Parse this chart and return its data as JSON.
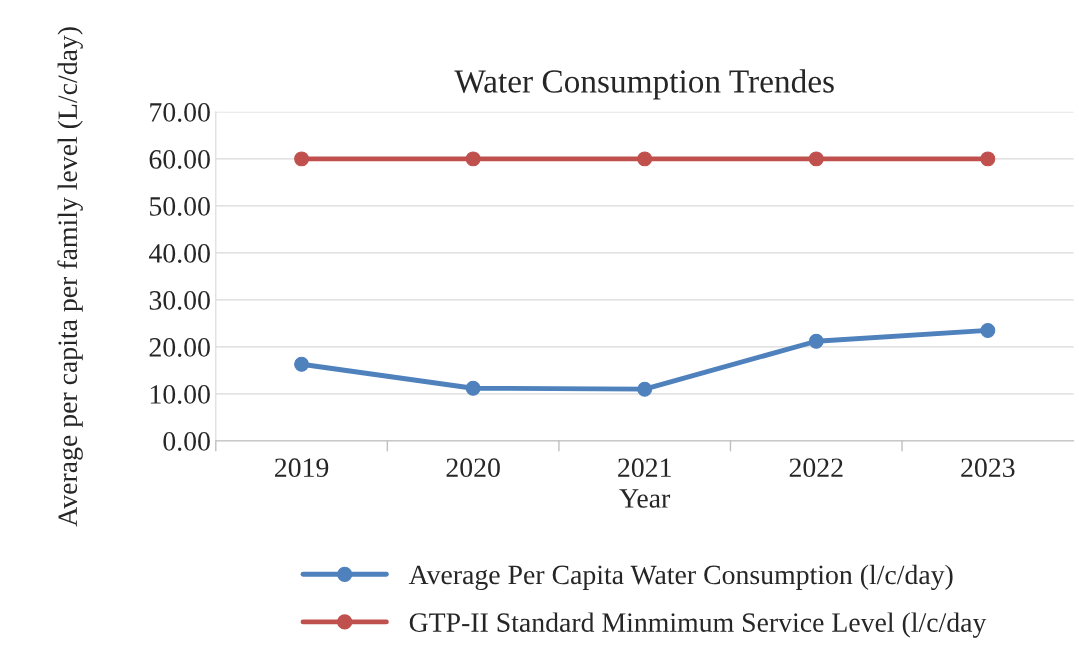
{
  "chart_data": {
    "type": "line",
    "title": "Water Consumption Trendes",
    "xlabel": "Year",
    "ylabel": "Average per capita per family level (L/c/day)",
    "categories": [
      "2019",
      "2020",
      "2021",
      "2022",
      "2023"
    ],
    "series": [
      {
        "name": "Average Per Capita Water Consumption (l/c/day)",
        "color": "#4f81bd",
        "values": [
          16.3,
          11.2,
          11.0,
          21.2,
          23.5
        ]
      },
      {
        "name": "GTP-II Standard Minmimum Service Level (l/c/day",
        "color": "#c0504d",
        "values": [
          60,
          60,
          60,
          60,
          60
        ]
      }
    ],
    "ylim": [
      0,
      70
    ],
    "yticks": [
      {
        "value": 0,
        "label": "0.00"
      },
      {
        "value": 10,
        "label": "10.00"
      },
      {
        "value": 20,
        "label": "20.00"
      },
      {
        "value": 30,
        "label": "30.00"
      },
      {
        "value": 40,
        "label": "40.00"
      },
      {
        "value": 50,
        "label": "50.00"
      },
      {
        "value": 60,
        "label": "60.00"
      },
      {
        "value": 70,
        "label": "70.00"
      }
    ],
    "grid": "y",
    "legend": "bottom",
    "marker": "circle",
    "line_style": "solid"
  }
}
